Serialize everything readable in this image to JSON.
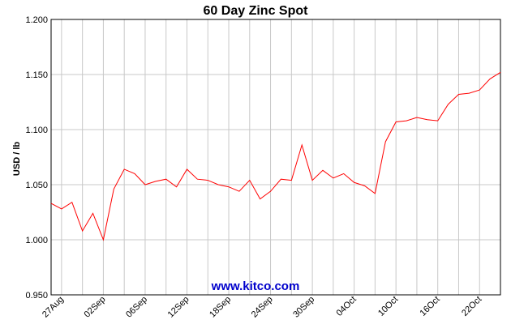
{
  "chart_data": {
    "type": "line",
    "title": "60 Day Zinc Spot",
    "xlabel": "",
    "ylabel": "USD / lb",
    "ylim": [
      0.95,
      1.2
    ],
    "yticks": [
      "1.200",
      "1.150",
      "1.100",
      "1.050",
      "1.000",
      "0.950"
    ],
    "yticks_values": [
      1.2,
      1.15,
      1.1,
      1.05,
      1.0,
      0.95
    ],
    "xticks": [
      "27Aug",
      "02Sep",
      "06Sep",
      "12Sep",
      "18Sep",
      "24Sep",
      "30Sep",
      "04Oct",
      "10Oct",
      "16Oct",
      "22Oct"
    ],
    "xticks_index": [
      1,
      5,
      9,
      13,
      17,
      21,
      25,
      29,
      33,
      37,
      41
    ],
    "grid": true,
    "line_color": "#ff0000",
    "series": [
      {
        "values": [
          1.033,
          1.028,
          1.034,
          1.008,
          1.024,
          1.0,
          1.046,
          1.064,
          1.06,
          1.05,
          1.053,
          1.055,
          1.048,
          1.064,
          1.055,
          1.054,
          1.05,
          1.048,
          1.044,
          1.054,
          1.037,
          1.044,
          1.055,
          1.054,
          1.086,
          1.054,
          1.063,
          1.056,
          1.06,
          1.052,
          1.049,
          1.042,
          1.089,
          1.107,
          1.108,
          1.111,
          1.109,
          1.108,
          1.123,
          1.132,
          1.133,
          1.136,
          1.146,
          1.152
        ]
      }
    ]
  },
  "watermark": "www.kitco.com"
}
